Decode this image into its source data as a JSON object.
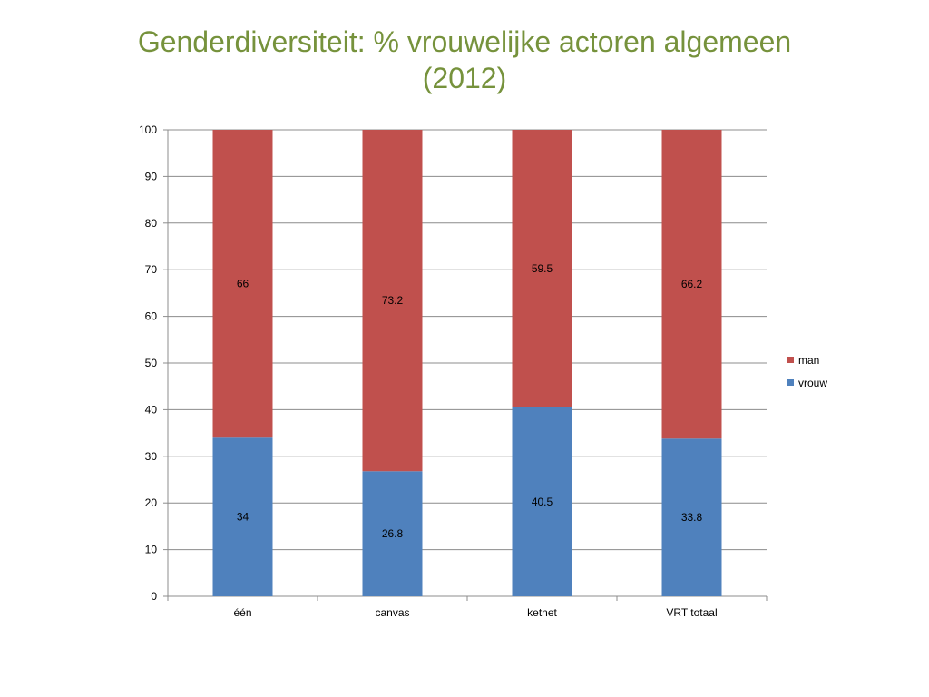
{
  "slide": {
    "title_line1": "Genderdiversiteit: % vrouwelijke actoren algemeen",
    "title_line2": "(2012)"
  },
  "chart_data": {
    "type": "bar",
    "stacked": true,
    "categories": [
      "één",
      "canvas",
      "ketnet",
      "VRT totaal"
    ],
    "series": [
      {
        "name": "vrouw",
        "values": [
          34,
          26.8,
          40.5,
          33.8
        ],
        "color": "#4f81bd"
      },
      {
        "name": "man",
        "values": [
          66,
          73.2,
          59.5,
          66.2
        ],
        "color": "#c0504d"
      }
    ],
    "ylim": [
      0,
      100
    ],
    "yticks": [
      0,
      10,
      20,
      30,
      40,
      50,
      60,
      70,
      80,
      90,
      100
    ],
    "grid": true,
    "legend_position": "right",
    "legend_order": [
      "man",
      "vrouw"
    ]
  }
}
